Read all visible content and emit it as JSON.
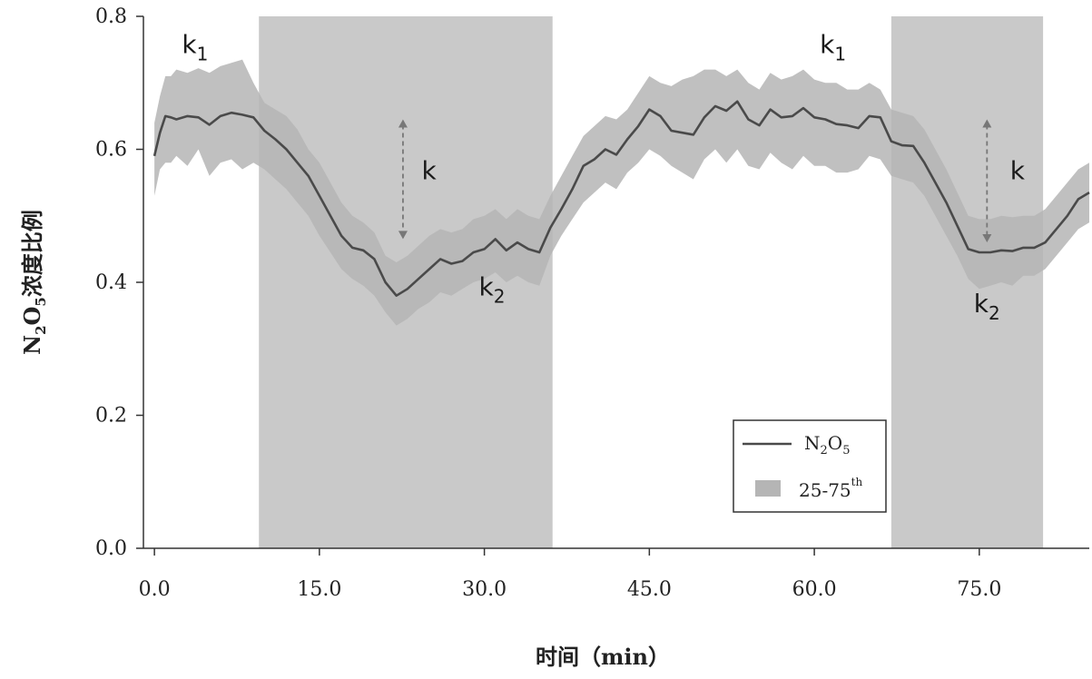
{
  "chart_data": {
    "type": "line",
    "xlabel": "时间（min）",
    "ylabel_parts": {
      "n": "N",
      "n_sub": "2",
      "o": "O",
      "o_sub": "5",
      "rest": "浓度比例"
    },
    "xlim": [
      -1,
      85
    ],
    "ylim": [
      0,
      0.8
    ],
    "x_ticks": [
      0,
      15,
      30,
      45,
      60,
      75
    ],
    "x_tick_labels": [
      "0.0",
      "15.0",
      "30.0",
      "45.0",
      "60.0",
      "75.0"
    ],
    "y_ticks": [
      0,
      0.2,
      0.4,
      0.6,
      0.8
    ],
    "y_tick_labels": [
      "0.0",
      "0.2",
      "0.4",
      "0.6",
      "0.8"
    ],
    "shaded_periods": [
      [
        9.5,
        36.2
      ],
      [
        67.0,
        80.8
      ]
    ],
    "series": [
      {
        "name": "N2O5",
        "color": "#4a4a4a",
        "x": [
          0,
          0.5,
          1,
          1.5,
          2,
          3,
          4,
          5,
          6,
          7,
          8,
          9,
          10,
          11,
          12,
          13,
          14,
          15,
          16,
          17,
          18,
          19,
          20,
          21,
          22,
          23,
          24,
          25,
          26,
          27,
          28,
          29,
          30,
          31,
          32,
          33,
          34,
          35,
          36,
          37,
          38,
          39,
          40,
          41,
          42,
          43,
          44,
          45,
          46,
          47,
          48,
          49,
          50,
          51,
          52,
          53,
          54,
          55,
          56,
          57,
          58,
          59,
          60,
          61,
          62,
          63,
          64,
          65,
          66,
          67,
          68,
          69,
          70,
          71,
          72,
          73,
          74,
          75,
          76,
          77,
          78,
          79,
          80,
          81,
          82,
          83,
          84,
          85
        ],
        "y": [
          0.59,
          0.625,
          0.65,
          0.648,
          0.645,
          0.65,
          0.648,
          0.637,
          0.65,
          0.655,
          0.652,
          0.648,
          0.628,
          0.615,
          0.6,
          0.58,
          0.56,
          0.53,
          0.5,
          0.47,
          0.452,
          0.448,
          0.435,
          0.4,
          0.38,
          0.39,
          0.405,
          0.42,
          0.435,
          0.428,
          0.432,
          0.445,
          0.45,
          0.465,
          0.448,
          0.46,
          0.45,
          0.445,
          0.482,
          0.51,
          0.54,
          0.575,
          0.585,
          0.6,
          0.592,
          0.615,
          0.635,
          0.66,
          0.65,
          0.628,
          0.625,
          0.622,
          0.648,
          0.665,
          0.658,
          0.672,
          0.645,
          0.636,
          0.66,
          0.648,
          0.65,
          0.662,
          0.648,
          0.645,
          0.638,
          0.636,
          0.632,
          0.65,
          0.648,
          0.612,
          0.606,
          0.605,
          0.58,
          0.55,
          0.52,
          0.485,
          0.45,
          0.445,
          0.445,
          0.448,
          0.447,
          0.452,
          0.452,
          0.46,
          0.48,
          0.5,
          0.525,
          0.535
        ]
      },
      {
        "name": "25-75th",
        "color": "#b5b5b5",
        "x": [
          0,
          0.5,
          1,
          1.5,
          2,
          3,
          4,
          5,
          6,
          7,
          8,
          9,
          10,
          11,
          12,
          13,
          14,
          15,
          16,
          17,
          18,
          19,
          20,
          21,
          22,
          23,
          24,
          25,
          26,
          27,
          28,
          29,
          30,
          31,
          32,
          33,
          34,
          35,
          36,
          37,
          38,
          39,
          40,
          41,
          42,
          43,
          44,
          45,
          46,
          47,
          48,
          49,
          50,
          51,
          52,
          53,
          54,
          55,
          56,
          57,
          58,
          59,
          60,
          61,
          62,
          63,
          64,
          65,
          66,
          67,
          68,
          69,
          70,
          71,
          72,
          73,
          74,
          75,
          76,
          77,
          78,
          79,
          80,
          81,
          82,
          83,
          84,
          85
        ],
        "upper": [
          0.64,
          0.68,
          0.71,
          0.71,
          0.72,
          0.715,
          0.722,
          0.715,
          0.725,
          0.73,
          0.735,
          0.7,
          0.67,
          0.66,
          0.65,
          0.63,
          0.6,
          0.58,
          0.55,
          0.52,
          0.5,
          0.49,
          0.475,
          0.44,
          0.43,
          0.44,
          0.455,
          0.47,
          0.48,
          0.475,
          0.48,
          0.495,
          0.5,
          0.51,
          0.495,
          0.51,
          0.5,
          0.495,
          0.53,
          0.56,
          0.59,
          0.62,
          0.635,
          0.65,
          0.645,
          0.66,
          0.685,
          0.71,
          0.7,
          0.695,
          0.705,
          0.71,
          0.72,
          0.72,
          0.71,
          0.72,
          0.7,
          0.69,
          0.715,
          0.705,
          0.71,
          0.72,
          0.705,
          0.7,
          0.7,
          0.69,
          0.69,
          0.7,
          0.69,
          0.66,
          0.655,
          0.65,
          0.63,
          0.6,
          0.57,
          0.535,
          0.5,
          0.495,
          0.495,
          0.5,
          0.498,
          0.5,
          0.5,
          0.51,
          0.53,
          0.55,
          0.57,
          0.58
        ],
        "lower": [
          0.53,
          0.57,
          0.58,
          0.58,
          0.59,
          0.575,
          0.6,
          0.56,
          0.58,
          0.585,
          0.57,
          0.58,
          0.57,
          0.555,
          0.54,
          0.52,
          0.5,
          0.47,
          0.445,
          0.42,
          0.405,
          0.395,
          0.38,
          0.355,
          0.335,
          0.345,
          0.36,
          0.37,
          0.385,
          0.38,
          0.39,
          0.4,
          0.405,
          0.415,
          0.4,
          0.41,
          0.4,
          0.395,
          0.44,
          0.47,
          0.495,
          0.52,
          0.535,
          0.55,
          0.54,
          0.565,
          0.58,
          0.6,
          0.59,
          0.575,
          0.565,
          0.555,
          0.585,
          0.6,
          0.58,
          0.6,
          0.575,
          0.57,
          0.595,
          0.58,
          0.57,
          0.59,
          0.575,
          0.575,
          0.565,
          0.565,
          0.57,
          0.59,
          0.585,
          0.56,
          0.555,
          0.55,
          0.53,
          0.5,
          0.47,
          0.44,
          0.405,
          0.39,
          0.395,
          0.4,
          0.395,
          0.41,
          0.41,
          0.42,
          0.44,
          0.46,
          0.48,
          0.49
        ]
      }
    ],
    "legend": {
      "placement": "bottom-right",
      "items": [
        {
          "label_main": "N",
          "sub1": "2",
          "mid": "O",
          "sub2": "5"
        },
        {
          "label_main": "25-75",
          "sup": "th"
        }
      ]
    },
    "annotations": [
      {
        "text": "k",
        "sub": "1",
        "x": 2.5,
        "y": 0.745
      },
      {
        "text": "k",
        "sub": "1",
        "x": 60.5,
        "y": 0.745
      },
      {
        "text": "k",
        "x": 24.3,
        "y": 0.555
      },
      {
        "text": "k",
        "x": 77.8,
        "y": 0.555
      },
      {
        "text": "k",
        "sub": "2",
        "x": 29.5,
        "y": 0.38
      },
      {
        "text": "k",
        "sub": "2",
        "x": 74.5,
        "y": 0.355
      }
    ],
    "k_arrows": [
      {
        "x": 22.6,
        "y_top": 0.645,
        "y_bottom": 0.465
      },
      {
        "x": 75.7,
        "y_top": 0.645,
        "y_bottom": 0.46
      }
    ]
  }
}
